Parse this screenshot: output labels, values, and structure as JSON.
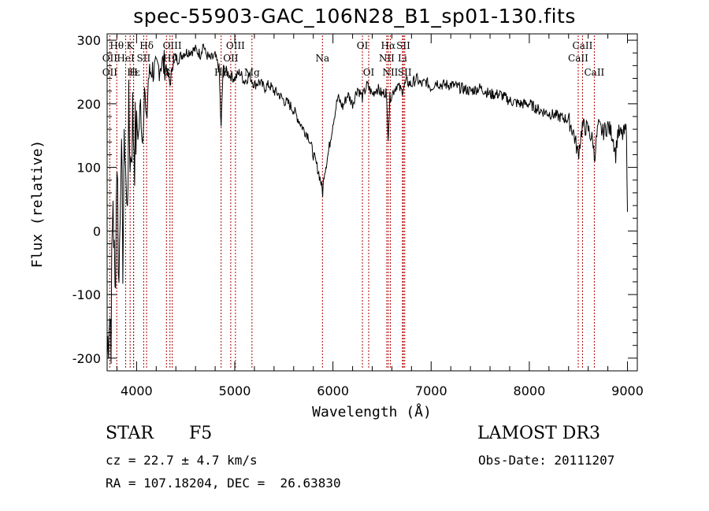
{
  "chart_data": {
    "type": "line",
    "title": "spec-55903-GAC_106N28_B1_sp01-130.fits",
    "xlabel": "Wavelength (Å)",
    "ylabel": "Flux (relative)",
    "xlim": [
      3700,
      9100
    ],
    "ylim": [
      -220,
      310
    ],
    "xticks": [
      4000,
      5000,
      6000,
      7000,
      8000,
      9000
    ],
    "yticks": [
      -200,
      -100,
      0,
      100,
      200,
      300
    ],
    "series": [
      {
        "name": "flux",
        "x": [
          3700,
          3720,
          3740,
          3760,
          3780,
          3800,
          3820,
          3840,
          3860,
          3880,
          3900,
          3920,
          3940,
          3960,
          3980,
          4000,
          4020,
          4040,
          4060,
          4080,
          4100,
          4120,
          4150,
          4200,
          4250,
          4300,
          4340,
          4380,
          4420,
          4480,
          4550,
          4600,
          4650,
          4680,
          4700,
          4750,
          4800,
          4840,
          4861,
          4880,
          4920,
          4950,
          5000,
          5050,
          5100,
          5150,
          5200,
          5250,
          5300,
          5350,
          5400,
          5450,
          5500,
          5550,
          5600,
          5650,
          5700,
          5750,
          5800,
          5850,
          5880,
          5895,
          5910,
          5950,
          6000,
          6050,
          6100,
          6150,
          6200,
          6250,
          6300,
          6350,
          6400,
          6450,
          6500,
          6540,
          6563,
          6580,
          6600,
          6650,
          6700,
          6750,
          6800,
          6850,
          6900,
          6950,
          7000,
          7050,
          7100,
          7200,
          7300,
          7400,
          7500,
          7600,
          7700,
          7800,
          7900,
          8000,
          8100,
          8200,
          8300,
          8400,
          8450,
          8498,
          8540,
          8600,
          8650,
          8662,
          8700,
          8750,
          8800,
          8850,
          8880,
          8900,
          8950,
          8990,
          9000
        ],
        "values": [
          -200,
          -120,
          -150,
          60,
          -110,
          130,
          -90,
          140,
          -30,
          160,
          20,
          170,
          110,
          180,
          130,
          170,
          150,
          200,
          140,
          230,
          160,
          240,
          255,
          250,
          265,
          260,
          230,
          275,
          270,
          280,
          283,
          285,
          278,
          295,
          280,
          270,
          275,
          255,
          160,
          255,
          250,
          245,
          240,
          250,
          235,
          245,
          230,
          235,
          225,
          230,
          220,
          215,
          205,
          200,
          190,
          175,
          160,
          150,
          120,
          95,
          75,
          60,
          90,
          120,
          170,
          210,
          195,
          215,
          200,
          225,
          210,
          230,
          215,
          225,
          215,
          220,
          150,
          210,
          215,
          230,
          220,
          235,
          230,
          240,
          230,
          235,
          225,
          235,
          230,
          230,
          225,
          220,
          225,
          215,
          215,
          205,
          200,
          200,
          190,
          185,
          180,
          175,
          155,
          120,
          165,
          160,
          140,
          115,
          165,
          155,
          165,
          150,
          120,
          155,
          150,
          160,
          30
        ]
      }
    ],
    "lines": [
      {
        "label": "Hθ",
        "x": 3798,
        "row": 1,
        "color": "#b00000"
      },
      {
        "label": "OII",
        "x": 3727,
        "row": 2,
        "color": "#b00000"
      },
      {
        "label": "Hε",
        "x": 3970,
        "row": 3,
        "color": "#b00000"
      },
      {
        "label": "OII",
        "x": 3727,
        "row": 3,
        "color": "#b00000"
      },
      {
        "label": "K",
        "x": 3934,
        "row": 1,
        "color": "#b00000"
      },
      {
        "label": "H",
        "x": 3969,
        "row": 3,
        "color": "#b00000"
      },
      {
        "label": "HeI",
        "x": 3889,
        "row": 2,
        "color": "#b00000"
      },
      {
        "label": "SII",
        "x": 4072,
        "row": 2,
        "color": "#b00000"
      },
      {
        "label": "Hδ",
        "x": 4102,
        "row": 1,
        "color": "#b00000"
      },
      {
        "label": "OIII",
        "x": 4363,
        "row": 1,
        "color": "#b00000"
      },
      {
        "label": "Hγ",
        "x": 4340,
        "row": 2,
        "color": "#b00000"
      },
      {
        "label": "G",
        "x": 4304,
        "row": 3,
        "color": "#b00000"
      },
      {
        "label": "OIII",
        "x": 5007,
        "row": 1,
        "color": "#b00000"
      },
      {
        "label": "OII",
        "x": 4959,
        "row": 2,
        "color": "#b00000"
      },
      {
        "label": "Hβ",
        "x": 4861,
        "row": 3,
        "color": "#b00000"
      },
      {
        "label": "Mg",
        "x": 5175,
        "row": 3,
        "color": "#b00000"
      },
      {
        "label": "Na",
        "x": 5893,
        "row": 2,
        "color": "#b00000"
      },
      {
        "label": "OI",
        "x": 6300,
        "row": 1,
        "color": "#b00000"
      },
      {
        "label": "OI",
        "x": 6364,
        "row": 3,
        "color": "#b00000"
      },
      {
        "label": "Hα",
        "x": 6563,
        "row": 1,
        "color": "#b00000"
      },
      {
        "label": "SII",
        "x": 6717,
        "row": 1,
        "color": "#b00000"
      },
      {
        "label": "NII",
        "x": 6548,
        "row": 2,
        "color": "#b00000"
      },
      {
        "label": "Li",
        "x": 6708,
        "row": 2,
        "color": "#b00000"
      },
      {
        "label": "NII",
        "x": 6584,
        "row": 3,
        "color": "#b00000"
      },
      {
        "label": "SII",
        "x": 6731,
        "row": 3,
        "color": "#b00000"
      },
      {
        "label": "CaII",
        "x": 8542,
        "row": 1,
        "color": "#b00000"
      },
      {
        "label": "CaII",
        "x": 8498,
        "row": 2,
        "color": "#b00000"
      },
      {
        "label": "CaII",
        "x": 8662,
        "row": 3,
        "color": "#b00000"
      }
    ]
  },
  "info": {
    "object_class": "STAR",
    "subclass": "F5",
    "survey": "LAMOST DR3",
    "redshift": "cz = 22.7 ± 4.7 km/s",
    "obs_date": "Obs-Date: 20111207",
    "coords": "RA = 107.18204, DEC =  26.63830"
  }
}
